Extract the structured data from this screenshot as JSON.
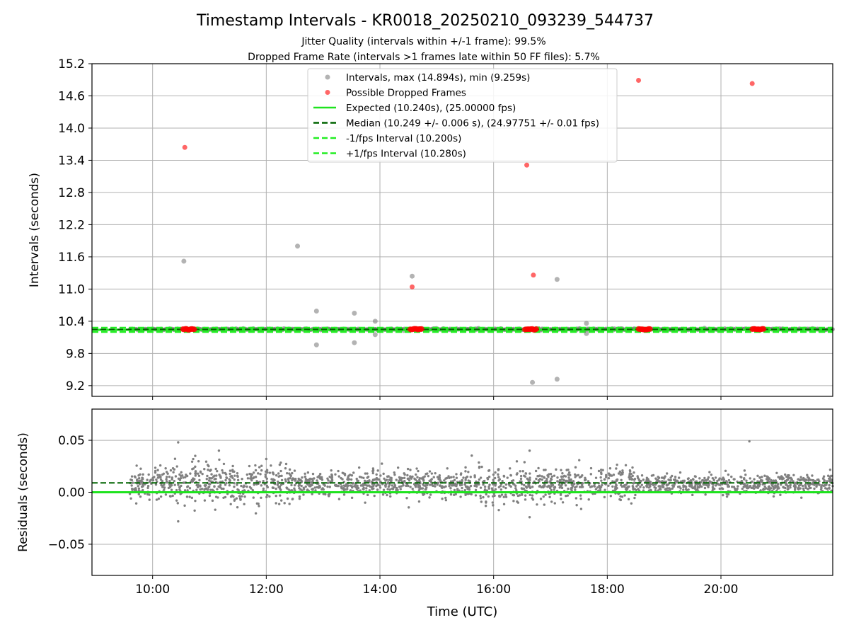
{
  "figure": {
    "title": "Timestamp Intervals - KR0018_20250210_093239_544737",
    "subtitle_1": "Jitter Quality (intervals within +/-1 frame): 99.5%",
    "subtitle_2": "Dropped Frame Rate (intervals >1 frames late within 50 FF files): 5.7%"
  },
  "colors": {
    "intervals": "#808080",
    "dropped": "#ff0000",
    "expected": "#1ee31e",
    "median": "#006400",
    "fps_interval": "#22ee22",
    "grid": "#b0b0b0"
  },
  "chart_data": [
    {
      "type": "scatter",
      "ylabel": "Intervals (seconds)",
      "ylim": [
        9.0,
        15.2
      ],
      "xlim": [
        "08:56",
        "21:58"
      ],
      "yticks": [
        9.2,
        9.8,
        10.4,
        11.0,
        11.6,
        12.2,
        12.8,
        13.4,
        14.0,
        14.6,
        15.2
      ],
      "xticks": [
        "10:00",
        "12:00",
        "14:00",
        "16:00",
        "18:00",
        "20:00"
      ],
      "grid": true,
      "legend_position": "upper center",
      "legend": [
        {
          "label": "Intervals, max (14.894s), min (9.259s)",
          "kind": "marker",
          "color": "#808080"
        },
        {
          "label": "Possible Dropped Frames",
          "kind": "marker",
          "color": "#ff0000"
        },
        {
          "label": "Expected (10.240s), (25.00000 fps)",
          "kind": "solid",
          "color": "#1ee31e"
        },
        {
          "label": "Median (10.249 +/- 0.006 s), (24.97751 +/- 0.01 fps)",
          "kind": "dashed",
          "color": "#006400"
        },
        {
          "label": "-1/fps Interval (10.200s)",
          "kind": "dashed",
          "color": "#22ee22"
        },
        {
          "label": "+1/fps Interval (10.280s)",
          "kind": "dashed",
          "color": "#22ee22"
        }
      ],
      "reference_lines": {
        "expected": 10.24,
        "median": 10.249,
        "minus_fps": 10.2,
        "plus_fps": 10.28
      },
      "interval_band": {
        "x_start": "09:36",
        "x_end": "21:58",
        "center": 10.25
      },
      "intervals_outliers": [
        {
          "x": "10:33",
          "y": 11.52
        },
        {
          "x": "12:33",
          "y": 11.8
        },
        {
          "x": "12:53",
          "y": 10.59
        },
        {
          "x": "12:53",
          "y": 9.96
        },
        {
          "x": "13:33",
          "y": 10.55
        },
        {
          "x": "13:33",
          "y": 10.0
        },
        {
          "x": "13:55",
          "y": 10.4
        },
        {
          "x": "13:55",
          "y": 10.15
        },
        {
          "x": "14:34",
          "y": 11.24
        },
        {
          "x": "16:41",
          "y": 9.26
        },
        {
          "x": "17:07",
          "y": 11.18
        },
        {
          "x": "17:07",
          "y": 9.32
        },
        {
          "x": "17:38",
          "y": 10.36
        },
        {
          "x": "17:38",
          "y": 10.17
        }
      ],
      "dropped_frames": [
        {
          "x": "10:34",
          "y": 13.64
        },
        {
          "x": "14:34",
          "y": 11.04
        },
        {
          "x": "16:35",
          "y": 13.31
        },
        {
          "x": "16:42",
          "y": 11.26
        },
        {
          "x": "18:33",
          "y": 14.89
        },
        {
          "x": "20:33",
          "y": 14.83
        }
      ],
      "dropped_clusters": [
        {
          "x_start": "10:32",
          "x_end": "10:44",
          "y": 10.25
        },
        {
          "x_start": "14:32",
          "x_end": "14:44",
          "y": 10.25
        },
        {
          "x_start": "16:33",
          "x_end": "16:45",
          "y": 10.25
        },
        {
          "x_start": "18:33",
          "x_end": "18:45",
          "y": 10.25
        },
        {
          "x_start": "20:33",
          "x_end": "20:45",
          "y": 10.25
        }
      ]
    },
    {
      "type": "scatter",
      "xlabel": "Time (UTC)",
      "ylabel": "Residuals (seconds)",
      "ylim": [
        -0.08,
        0.08
      ],
      "yticks": [
        -0.05,
        0.0,
        0.05
      ],
      "ytick_labels": [
        "−0.05",
        "0.00",
        "0.05"
      ],
      "xticks": [
        "10:00",
        "12:00",
        "14:00",
        "16:00",
        "18:00",
        "20:00"
      ],
      "grid": true,
      "reference_lines": {
        "expected": 0.0,
        "median": 0.009
      },
      "residual_cloud": {
        "x_start": "09:36",
        "x_end": "21:58",
        "center": 0.008,
        "spread_segments": [
          {
            "x_start": "09:36",
            "x_end": "11:00",
            "spread": 0.009
          },
          {
            "x_start": "11:00",
            "x_end": "12:30",
            "spread": 0.01
          },
          {
            "x_start": "12:30",
            "x_end": "14:00",
            "spread": 0.006
          },
          {
            "x_start": "14:00",
            "x_end": "15:30",
            "spread": 0.006
          },
          {
            "x_start": "15:30",
            "x_end": "17:00",
            "spread": 0.008
          },
          {
            "x_start": "17:00",
            "x_end": "18:30",
            "spread": 0.008
          },
          {
            "x_start": "18:30",
            "x_end": "20:00",
            "spread": 0.004
          },
          {
            "x_start": "20:00",
            "x_end": "21:58",
            "spread": 0.005
          }
        ]
      },
      "residual_outliers": [
        {
          "x": "10:27",
          "y": 0.048
        },
        {
          "x": "10:27",
          "y": -0.028
        },
        {
          "x": "16:38",
          "y": 0.04
        },
        {
          "x": "16:38",
          "y": -0.024
        },
        {
          "x": "20:30",
          "y": 0.049
        },
        {
          "x": "10:45",
          "y": 0.035
        },
        {
          "x": "11:10",
          "y": 0.04
        },
        {
          "x": "12:00",
          "y": 0.032
        }
      ]
    }
  ]
}
